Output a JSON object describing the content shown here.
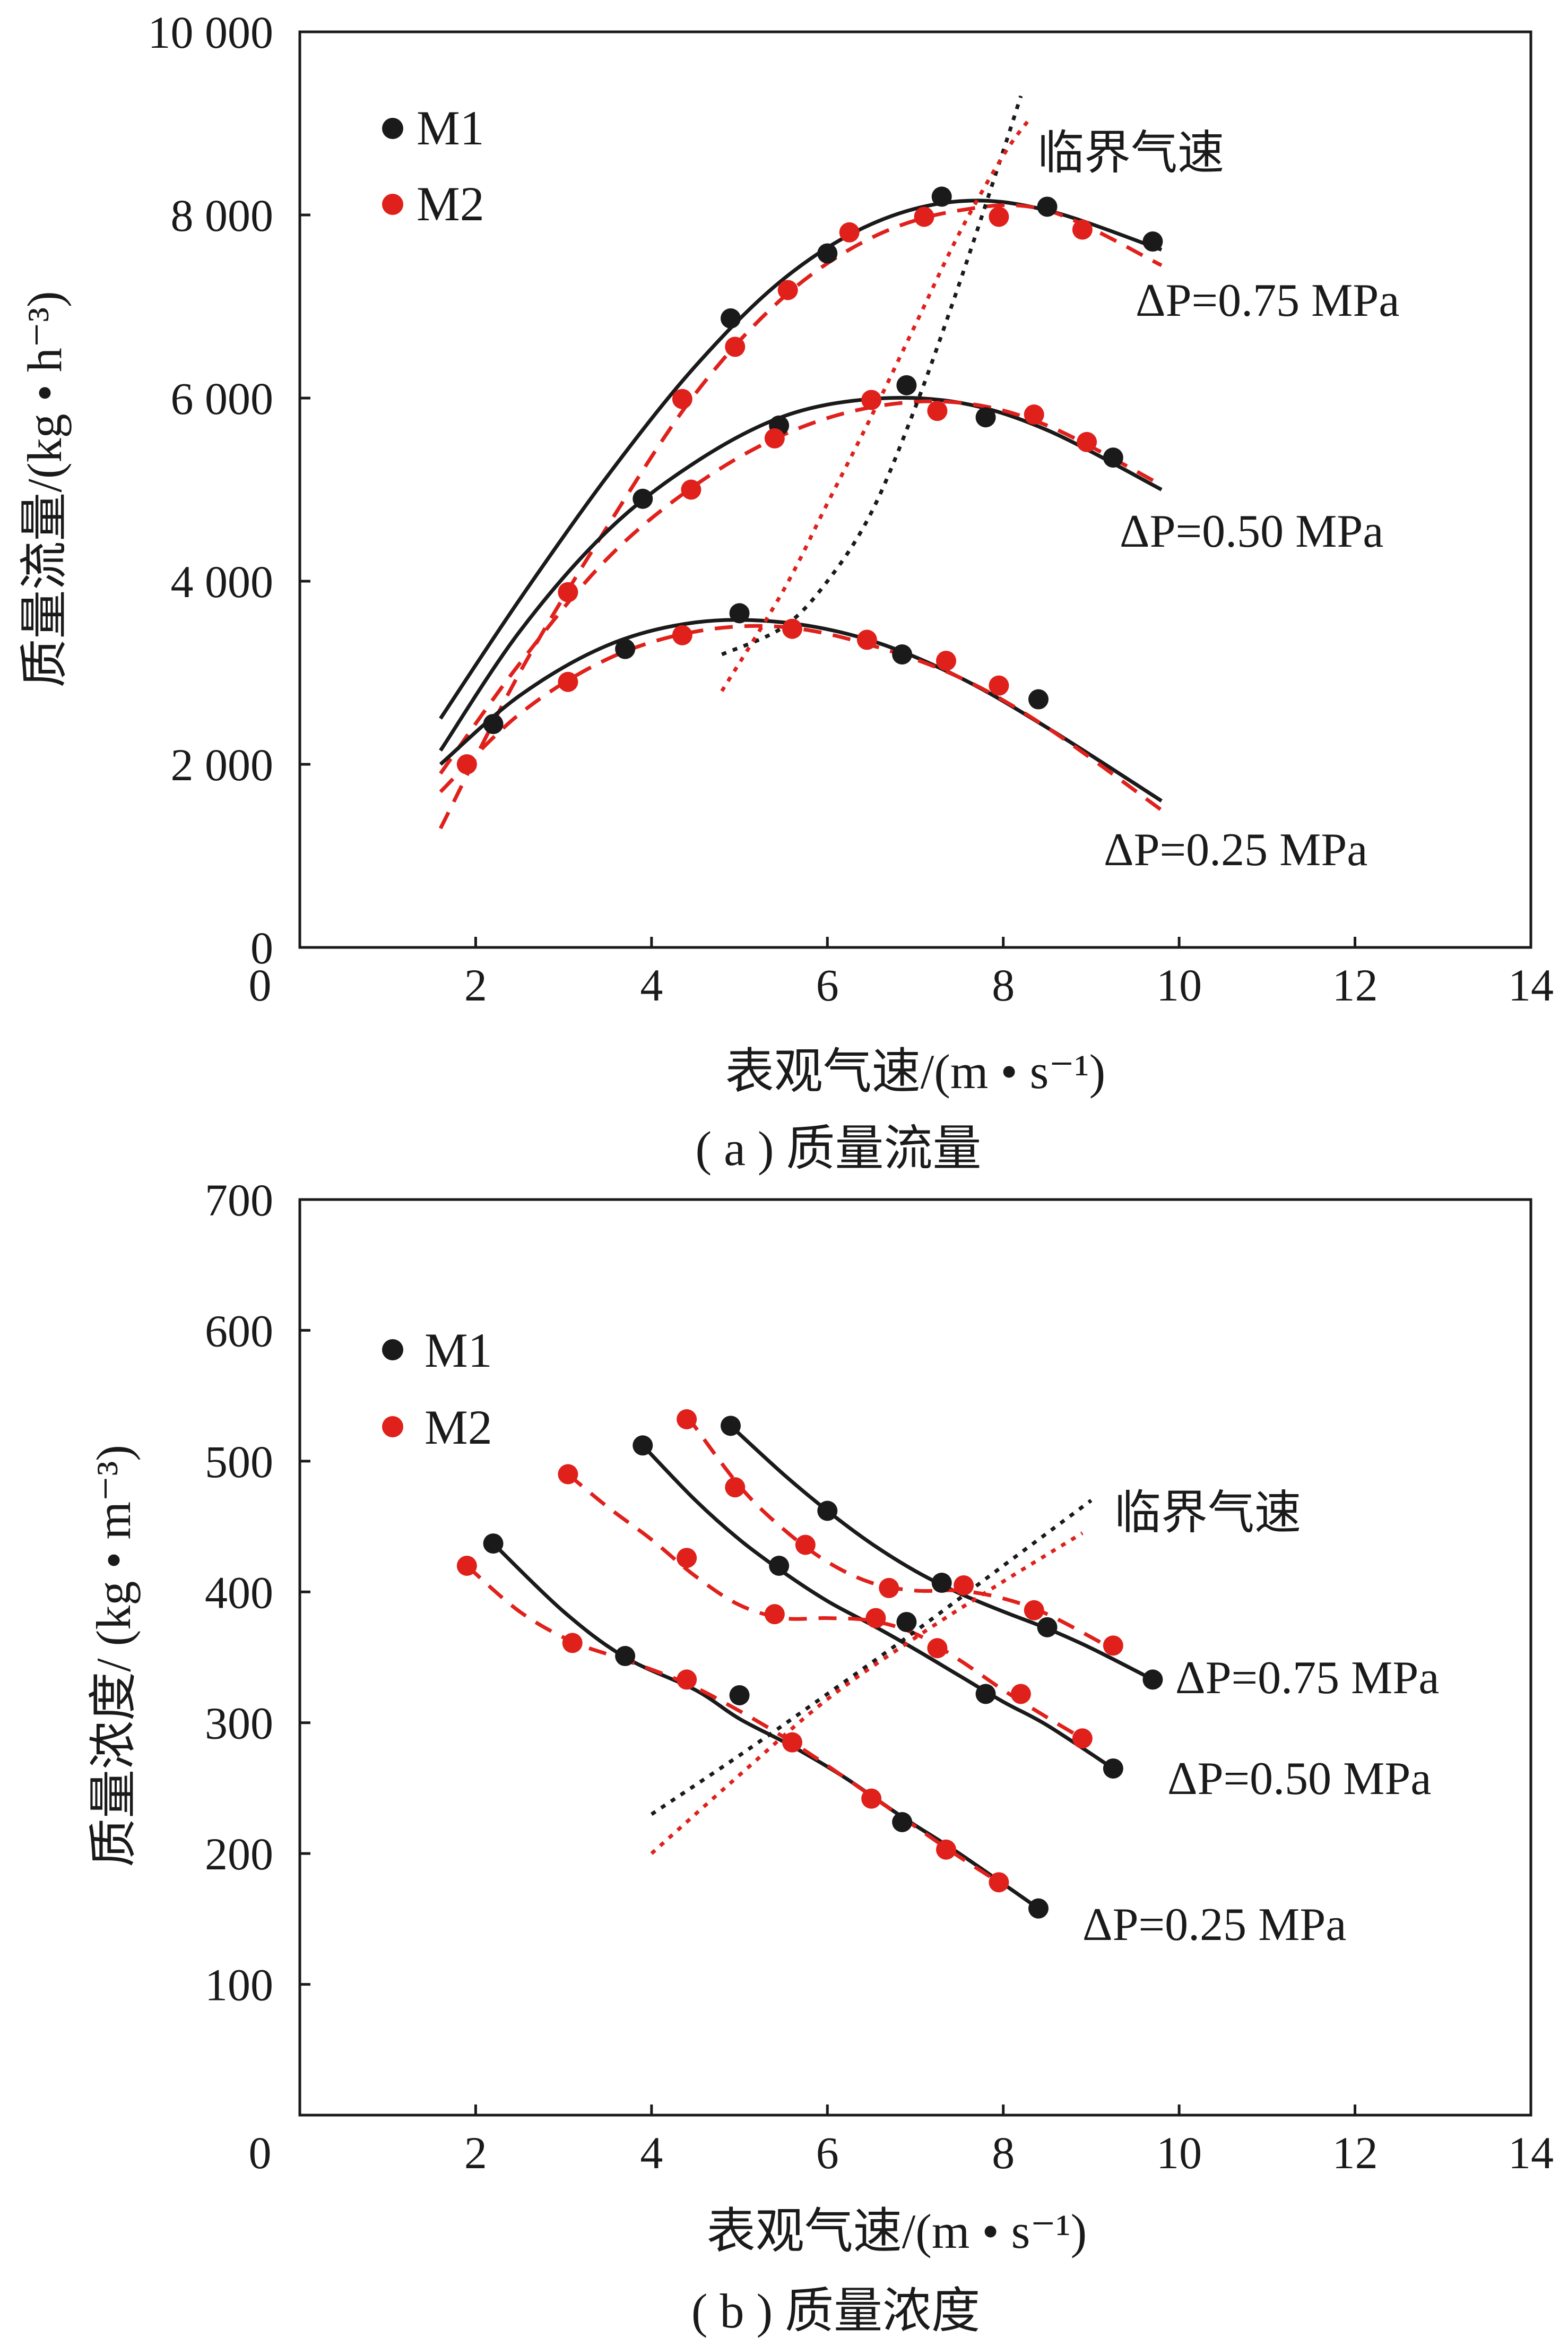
{
  "chart_data": [
    {
      "type": "scatter",
      "caption": "( a ) 质量流量",
      "xlabel": "表观气速/(m • s⁻¹)",
      "ylabel": "质量流量/(kg • h⁻³)",
      "xlim": [
        0,
        14
      ],
      "ylim": [
        0,
        10000
      ],
      "x_ticks": [
        0,
        2,
        4,
        6,
        8,
        10,
        12,
        14
      ],
      "y_ticks": [
        0,
        2000,
        4000,
        6000,
        8000,
        10000
      ],
      "x_tick_labels": [
        "0",
        "2",
        "4",
        "6",
        "8",
        "10",
        "12",
        "14"
      ],
      "y_tick_labels": [
        "0",
        "2 000",
        "4 000",
        "6 000",
        "8 000",
        "10 000"
      ],
      "grid": false,
      "legend": {
        "position": "top-left",
        "entries": [
          "M1",
          "M2"
        ]
      },
      "annotations": [
        {
          "text": "临界气速"
        },
        {
          "text": "ΔP=0.75 MPa"
        },
        {
          "text": "ΔP=0.50 MPa"
        },
        {
          "text": "ΔP=0.25 MPa"
        }
      ],
      "series": [
        {
          "name": "M1",
          "group": "ΔP=0.75 MPa",
          "color": "#1a1a1a",
          "x": [
            4.9,
            6.0,
            7.3,
            8.5,
            9.7
          ],
          "y": [
            6870,
            7580,
            8200,
            8090,
            7710
          ],
          "fit_x": [
            1.6,
            2.5,
            3.5,
            4.5,
            5.5,
            6.5,
            7.5,
            8.5,
            9.8
          ],
          "fit_y": [
            2500,
            3800,
            5150,
            6350,
            7300,
            7900,
            8150,
            8050,
            7620
          ]
        },
        {
          "name": "M2",
          "group": "ΔP=0.75 MPa",
          "color": "#e0201b",
          "x": [
            4.35,
            4.95,
            5.55,
            6.25,
            7.1,
            7.95,
            8.9
          ],
          "y": [
            5990,
            6560,
            7180,
            7810,
            7980,
            7980,
            7840
          ],
          "fit_x": [
            1.6,
            2.5,
            3.5,
            4.5,
            5.5,
            6.5,
            7.5,
            8.5,
            9.8
          ],
          "fit_y": [
            1300,
            3000,
            4600,
            6050,
            7100,
            7750,
            8050,
            8050,
            7450
          ]
        },
        {
          "name": "M1",
          "group": "ΔP=0.50 MPa",
          "color": "#1a1a1a",
          "x": [
            3.9,
            5.45,
            6.9,
            7.8,
            9.25
          ],
          "y": [
            4900,
            5700,
            6140,
            5790,
            5350
          ],
          "fit_x": [
            1.6,
            2.5,
            3.5,
            4.5,
            5.5,
            6.5,
            7.5,
            8.5,
            9.8
          ],
          "fit_y": [
            2150,
            3450,
            4550,
            5300,
            5800,
            5990,
            5950,
            5650,
            5000
          ]
        },
        {
          "name": "M2",
          "group": "ΔP=0.50 MPa",
          "color": "#e0201b",
          "x": [
            3.05,
            4.45,
            5.4,
            6.5,
            7.25,
            8.35,
            8.95
          ],
          "y": [
            3880,
            5000,
            5560,
            5980,
            5860,
            5820,
            5520
          ],
          "fit_x": [
            1.6,
            2.5,
            3.5,
            4.5,
            5.5,
            6.5,
            7.5,
            8.5,
            9.8
          ],
          "fit_y": [
            1900,
            3100,
            4250,
            5050,
            5600,
            5900,
            5950,
            5700,
            5050
          ]
        },
        {
          "name": "M1",
          "group": "ΔP=0.25 MPa",
          "color": "#1a1a1a",
          "x": [
            2.2,
            3.7,
            5.0,
            6.85,
            8.4
          ],
          "y": [
            2440,
            3260,
            3650,
            3200,
            2710
          ],
          "fit_x": [
            1.6,
            2.5,
            3.5,
            4.5,
            5.5,
            6.5,
            7.5,
            8.5,
            9.8
          ],
          "fit_y": [
            2000,
            2750,
            3300,
            3550,
            3550,
            3350,
            2950,
            2400,
            1600
          ]
        },
        {
          "name": "M2",
          "group": "ΔP=0.25 MPa",
          "color": "#e0201b",
          "x": [
            1.9,
            3.05,
            4.35,
            5.6,
            6.45,
            7.35,
            7.95
          ],
          "y": [
            2000,
            2900,
            3410,
            3480,
            3360,
            3130,
            2860
          ],
          "fit_x": [
            1.6,
            2.5,
            3.5,
            4.5,
            5.5,
            6.5,
            7.5,
            8.5,
            9.8
          ],
          "fit_y": [
            1700,
            2550,
            3150,
            3450,
            3500,
            3300,
            2950,
            2400,
            1500
          ]
        },
        {
          "name": "M1",
          "group": "临界气速",
          "color": "#1a1a1a",
          "fit_x": [
            4.8,
            5.5,
            6.0,
            6.5,
            7.0,
            7.5,
            8.0,
            8.2
          ],
          "fit_y": [
            3200,
            3500,
            4000,
            4750,
            5900,
            7250,
            8700,
            9300
          ]
        },
        {
          "name": "M2",
          "group": "临界气速",
          "color": "#e0201b",
          "fit_x": [
            4.8,
            5.5,
            6.0,
            6.5,
            7.0,
            7.5,
            8.0,
            8.3
          ],
          "fit_y": [
            2800,
            3900,
            4850,
            5800,
            6800,
            7800,
            8650,
            9050
          ]
        }
      ]
    },
    {
      "type": "scatter",
      "caption": "( b ) 质量浓度",
      "xlabel": "表观气速/(m • s⁻¹)",
      "ylabel": "质量浓度/ (kg • m⁻³)",
      "xlim": [
        0,
        14
      ],
      "ylim": [
        0,
        700
      ],
      "x_ticks": [
        0,
        2,
        4,
        6,
        8,
        10,
        12,
        14
      ],
      "y_ticks": [
        100,
        200,
        300,
        400,
        500,
        600,
        700
      ],
      "x_tick_labels": [
        "0",
        "2",
        "4",
        "6",
        "8",
        "10",
        "12",
        "14"
      ],
      "y_tick_labels": [
        "100",
        "200",
        "300",
        "400",
        "500",
        "600",
        "700"
      ],
      "grid": false,
      "legend": {
        "position": "top-left",
        "entries": [
          "M1",
          "M2"
        ]
      },
      "annotations": [
        {
          "text": "临界气速"
        },
        {
          "text": "ΔP=0.75 MPa"
        },
        {
          "text": "ΔP=0.50 MPa"
        },
        {
          "text": "ΔP=0.25 MPa"
        }
      ],
      "series": [
        {
          "name": "M1",
          "group": "ΔP=0.75 MPa",
          "color": "#1a1a1a",
          "x": [
            4.9,
            6.0,
            7.3,
            8.5,
            9.7
          ],
          "y": [
            527,
            462,
            407,
            373,
            333
          ],
          "fit_x": [
            4.9,
            5.5,
            6.0,
            6.5,
            7.0,
            7.5,
            8.0,
            8.5,
            9.0,
            9.7
          ],
          "fit_y": [
            527,
            490,
            462,
            437,
            416,
            399,
            385,
            372,
            357,
            333
          ]
        },
        {
          "name": "M2",
          "group": "ΔP=0.75 MPa",
          "color": "#e0201b",
          "x": [
            4.4,
            4.95,
            5.75,
            6.7,
            7.55,
            8.35,
            9.25
          ],
          "y": [
            532,
            480,
            436,
            403,
            405,
            386,
            359
          ],
          "fit_x": [
            4.4,
            5.0,
            5.5,
            6.0,
            6.5,
            7.0,
            7.5,
            8.0,
            8.5,
            9.2
          ],
          "fit_y": [
            535,
            481,
            448,
            423,
            407,
            401,
            401,
            395,
            383,
            358
          ]
        },
        {
          "name": "M1",
          "group": "ΔP=0.50 MPa",
          "color": "#1a1a1a",
          "x": [
            3.9,
            5.45,
            6.9,
            7.8,
            9.25
          ],
          "y": [
            512,
            420,
            377,
            322,
            265
          ],
          "fit_x": [
            3.9,
            4.5,
            5.0,
            5.5,
            6.0,
            6.5,
            7.0,
            7.5,
            8.0,
            8.5,
            9.25
          ],
          "fit_y": [
            512,
            470,
            440,
            415,
            393,
            375,
            356,
            336,
            316,
            298,
            265
          ]
        },
        {
          "name": "M2",
          "group": "ΔP=0.50 MPa",
          "color": "#e0201b",
          "x": [
            3.05,
            4.4,
            5.4,
            6.55,
            7.25,
            8.2,
            8.9
          ],
          "y": [
            490,
            426,
            383,
            380,
            357,
            322,
            288
          ],
          "fit_x": [
            3.05,
            3.5,
            4.0,
            4.5,
            5.0,
            5.5,
            6.0,
            6.5,
            7.0,
            7.5,
            8.0,
            8.5,
            8.9
          ],
          "fit_y": [
            490,
            465,
            440,
            412,
            390,
            380,
            380,
            378,
            368,
            348,
            325,
            304,
            288
          ]
        },
        {
          "name": "M1",
          "group": "ΔP=0.25 MPa",
          "color": "#1a1a1a",
          "x": [
            2.2,
            3.7,
            5.0,
            6.85,
            8.4
          ],
          "y": [
            437,
            351,
            321,
            224,
            158
          ],
          "fit_x": [
            2.2,
            3.0,
            3.7,
            4.5,
            5.0,
            5.6,
            6.2,
            6.85,
            7.5,
            8.4
          ],
          "fit_y": [
            437,
            385,
            350,
            325,
            303,
            282,
            258,
            228,
            200,
            158
          ]
        },
        {
          "name": "M2",
          "group": "ΔP=0.25 MPa",
          "color": "#e0201b",
          "x": [
            1.9,
            3.1,
            4.4,
            5.6,
            6.5,
            7.35,
            7.95
          ],
          "y": [
            420,
            361,
            333,
            285,
            242,
            203,
            178
          ],
          "fit_x": [
            1.9,
            2.5,
            3.1,
            3.7,
            4.4,
            5.0,
            5.6,
            6.2,
            6.8,
            7.4,
            7.95
          ],
          "fit_y": [
            420,
            385,
            362,
            348,
            330,
            309,
            285,
            258,
            230,
            202,
            178
          ]
        },
        {
          "name": "M1",
          "group": "临界气速",
          "color": "#1a1a1a",
          "fit_x": [
            4.0,
            5.0,
            6.0,
            7.0,
            8.0,
            9.0
          ],
          "fit_y": [
            230,
            275,
            322,
            370,
            420,
            470
          ]
        },
        {
          "name": "M2",
          "group": "临界气速",
          "color": "#e0201b",
          "fit_x": [
            4.0,
            5.0,
            6.0,
            7.0,
            8.0,
            8.9
          ],
          "fit_y": [
            200,
            260,
            318,
            365,
            408,
            445
          ]
        }
      ]
    }
  ]
}
